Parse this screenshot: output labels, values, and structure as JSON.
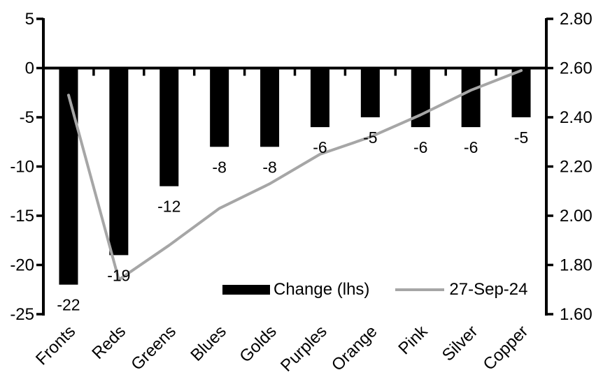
{
  "chart_data": {
    "type": "bar",
    "subtype": "bar-with-line-dual-axis",
    "title": "",
    "categories": [
      "Fronts",
      "Reds",
      "Greens",
      "Blues",
      "Golds",
      "Purples",
      "Orange",
      "Pink",
      "Silver",
      "Copper"
    ],
    "series": [
      {
        "name": "Change (lhs)",
        "type": "bar",
        "axis": "left",
        "color": "#000000",
        "values": [
          -22,
          -19,
          -12,
          -8,
          -8,
          -6,
          -5,
          -6,
          -6,
          -5
        ],
        "data_labels": [
          "-22",
          "-19",
          "-12",
          "-8",
          "-8",
          "-6",
          "-5",
          "-6",
          "-6",
          "-5"
        ]
      },
      {
        "name": "27-Sep-24",
        "type": "line",
        "axis": "right",
        "color": "#a6a6a6",
        "values": [
          2.49,
          1.74,
          1.88,
          2.03,
          2.13,
          2.25,
          2.32,
          2.41,
          2.51,
          2.59
        ]
      }
    ],
    "left_axis": {
      "min": -25,
      "max": 5,
      "step": 5,
      "tick_values": [
        5,
        0,
        -5,
        -10,
        -15,
        -20,
        -25
      ],
      "tick_labels": [
        "5",
        "0",
        "-5",
        "-10",
        "-15",
        "-20",
        "-25"
      ]
    },
    "right_axis": {
      "min": 1.6,
      "max": 2.8,
      "step": 0.2,
      "tick_values": [
        2.8,
        2.6,
        2.4,
        2.2,
        2.0,
        1.8,
        1.6
      ],
      "tick_labels": [
        "2.80",
        "2.60",
        "2.40",
        "2.20",
        "2.00",
        "1.80",
        "1.60"
      ]
    },
    "grid": false,
    "legend_position": "inside-bottom",
    "legend": [
      {
        "label": "Change (lhs)",
        "swatch": "bar",
        "color": "#000000"
      },
      {
        "label": "27-Sep-24",
        "swatch": "line",
        "color": "#a6a6a6"
      }
    ]
  },
  "colors": {
    "background": "#ffffff",
    "bar": "#000000",
    "line": "#a6a6a6",
    "axis": "#000000",
    "text": "#000000"
  }
}
